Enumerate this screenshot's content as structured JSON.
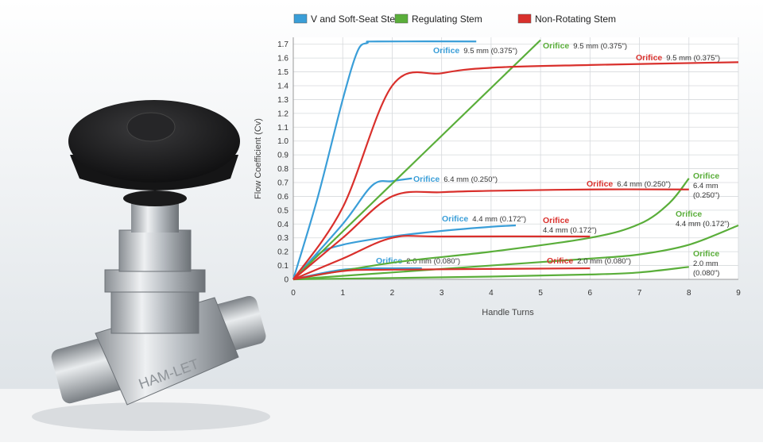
{
  "chart_data": {
    "type": "line",
    "x_label": "Handle Turns",
    "y_label": "Flow Coefficient (Cv)",
    "xlim": [
      0,
      9
    ],
    "xticks": [
      0,
      1,
      2,
      3,
      4,
      5,
      6,
      7,
      8,
      9
    ],
    "ylim": [
      0,
      1.75
    ],
    "yticks": [
      0,
      0.1,
      0.2,
      0.3,
      0.4,
      0.5,
      0.6,
      0.7,
      0.8,
      0.9,
      {
        "value": 1,
        "label": "1.0"
      },
      1.1,
      1.2,
      1.3,
      1.4,
      1.5,
      1.6,
      1.7
    ],
    "grid": true,
    "groups": [
      {
        "name": "V and Soft-Seat Stem",
        "color": "#3a9ed8",
        "lines": [
          {
            "label": {
              "head": "Orifice",
              "lines": [
                "9.5 mm (0.375\")"
              ]
            },
            "x": [
              0,
              0.5,
              1,
              1.3,
              1.5,
              1.7,
              3.7
            ],
            "values": [
              0,
              0.6,
              1.3,
              1.65,
              1.71,
              1.72,
              1.72
            ]
          },
          {
            "label": {
              "head": "Orifice",
              "lines": [
                "6.4 mm (0.250\")"
              ]
            },
            "x": [
              0,
              1,
              1.6,
              2,
              2.4
            ],
            "values": [
              0,
              0.4,
              0.68,
              0.71,
              0.73
            ]
          },
          {
            "label": {
              "head": "Orifice",
              "lines": [
                "4.4 mm (0.172\")"
              ]
            },
            "x": [
              0,
              0.5,
              1,
              2,
              3,
              4,
              4.5
            ],
            "values": [
              0,
              0.18,
              0.25,
              0.31,
              0.35,
              0.38,
              0.39
            ]
          },
          {
            "label": {
              "head": "Orifice",
              "lines": [
                "2.0 mm (0.080\")"
              ]
            },
            "x": [
              0,
              1,
              2,
              2.6
            ],
            "values": [
              0,
              0.07,
              0.08,
              0.08
            ]
          }
        ]
      },
      {
        "name": "Regulating Stem",
        "color": "#5aae3a",
        "lines": [
          {
            "label": {
              "head": "Orifice",
              "lines": [
                "9.5 mm (0.375\")"
              ]
            },
            "x": [
              0,
              5
            ],
            "values": [
              0,
              1.73
            ]
          },
          {
            "label": {
              "head": "Orifice",
              "lines": [
                "6.4 mm",
                "(0.250\")"
              ]
            },
            "x": [
              0,
              2,
              4,
              6,
              7,
              7.6,
              8
            ],
            "values": [
              0,
              0.12,
              0.2,
              0.3,
              0.4,
              0.55,
              0.73
            ]
          },
          {
            "label": {
              "head": "Orifice",
              "lines": [
                "4.4 mm (0.172\")"
              ]
            },
            "x": [
              0,
              2,
              4,
              6,
              7,
              8,
              9
            ],
            "values": [
              0,
              0.05,
              0.1,
              0.15,
              0.18,
              0.25,
              0.39
            ]
          },
          {
            "label": {
              "head": "Orifice",
              "lines": [
                "2.0 mm",
                "(0.080\")"
              ]
            },
            "x": [
              0,
              4,
              6,
              7,
              8
            ],
            "values": [
              0,
              0.02,
              0.035,
              0.05,
              0.09
            ]
          }
        ]
      },
      {
        "name": "Non-Rotating Stem",
        "color": "#d9302c",
        "lines": [
          {
            "label": {
              "head": "Orifice",
              "lines": [
                "9.5 mm (0.375\")"
              ]
            },
            "x": [
              0,
              1,
              2,
              3,
              4,
              6,
              9
            ],
            "values": [
              0,
              0.52,
              1.4,
              1.49,
              1.53,
              1.55,
              1.57
            ]
          },
          {
            "label": {
              "head": "Orifice",
              "lines": [
                "6.4 mm (0.250\")"
              ]
            },
            "x": [
              0,
              1,
              2,
              3,
              4,
              6,
              8
            ],
            "values": [
              0,
              0.3,
              0.6,
              0.63,
              0.64,
              0.65,
              0.65
            ]
          },
          {
            "label": {
              "head": "Orifice",
              "lines": [
                "4.4 mm (0.172\")"
              ]
            },
            "x": [
              0,
              1,
              2,
              3,
              6
            ],
            "values": [
              0,
              0.15,
              0.3,
              0.31,
              0.31
            ]
          },
          {
            "label": {
              "head": "Orifice",
              "lines": [
                "2.0 mm (0.080\")"
              ]
            },
            "x": [
              0,
              1,
              2,
              6
            ],
            "values": [
              0,
              0.06,
              0.07,
              0.08
            ]
          }
        ]
      }
    ]
  }
}
